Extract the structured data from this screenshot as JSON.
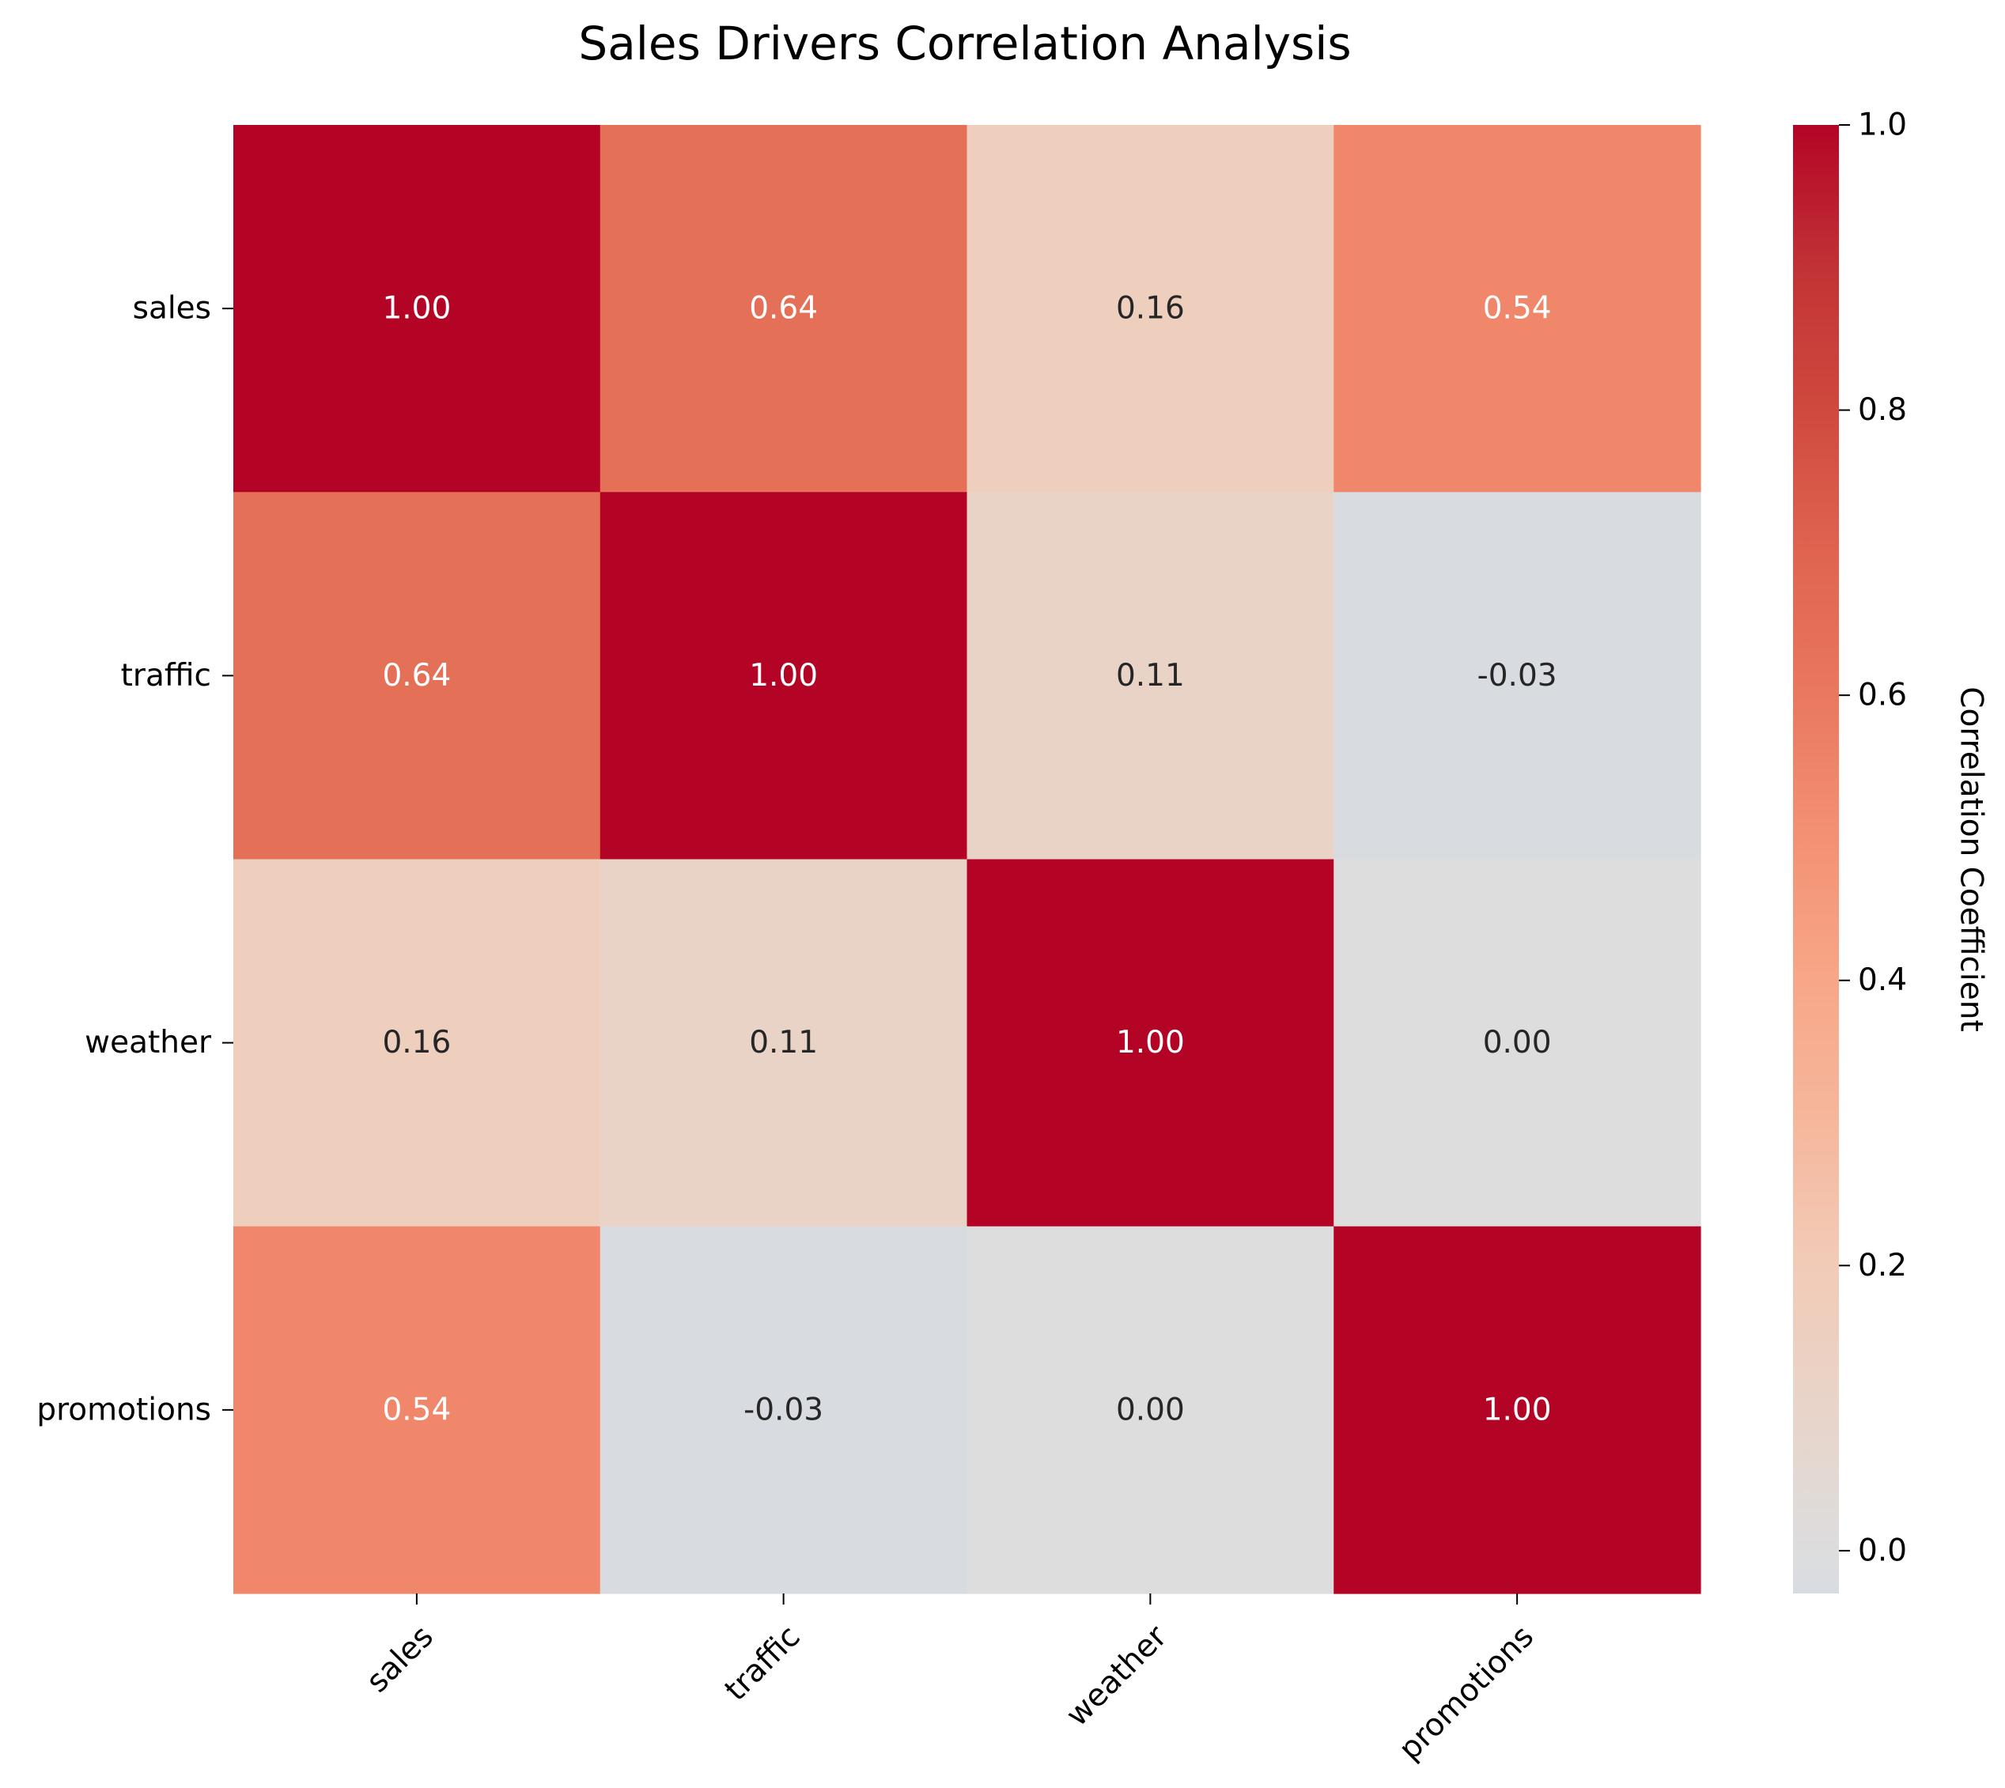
{
  "chart_data": {
    "type": "heatmap",
    "title": "Sales Drivers Correlation Analysis",
    "rows": [
      "sales",
      "traffic",
      "weather",
      "promotions"
    ],
    "columns": [
      "sales",
      "traffic",
      "weather",
      "promotions"
    ],
    "values": [
      [
        1.0,
        0.64,
        0.16,
        0.54
      ],
      [
        0.64,
        1.0,
        0.11,
        -0.03
      ],
      [
        0.16,
        0.11,
        1.0,
        0.0
      ],
      [
        0.54,
        -0.03,
        0.0,
        1.0
      ]
    ],
    "annotations": [
      [
        "1.00",
        "0.64",
        "0.16",
        "0.54"
      ],
      [
        "0.64",
        "1.00",
        "0.11",
        "-0.03"
      ],
      [
        "0.16",
        "0.11",
        "1.00",
        "0.00"
      ],
      [
        "0.54",
        "-0.03",
        "0.00",
        "1.00"
      ]
    ],
    "colorbar": {
      "label": "Correlation Coefficient",
      "range": [
        -0.03,
        1.0
      ],
      "ticks": [
        "0.0",
        "0.2",
        "0.4",
        "0.6",
        "0.8",
        "1.0"
      ],
      "tick_values": [
        0.0,
        0.2,
        0.4,
        0.6,
        0.8,
        1.0
      ],
      "colormap": "coolwarm (upper half, centered at 0)"
    },
    "x_tick_rotation": "45 degrees",
    "grid": false
  }
}
